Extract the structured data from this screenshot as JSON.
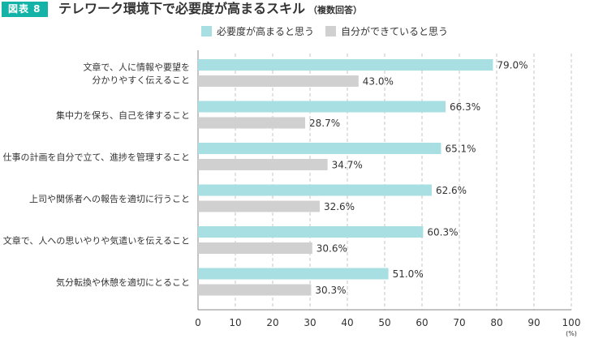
{
  "figure": {
    "badge": "図表 8",
    "title": "テレワーク環境下で必要度が高まるスキル",
    "subtitle": "（複数回答）"
  },
  "colors": {
    "badge": "#14b3a8",
    "series_needed": "#a8dfe2",
    "series_capable": "#d0d0d0"
  },
  "chart_data": {
    "type": "bar",
    "orientation": "horizontal",
    "categories": [
      [
        "文章で、人に情報や要望を",
        "分かりやすく伝えること"
      ],
      [
        "集中力を保ち、自己を律すること"
      ],
      [
        "仕事の計画を自分で立て、進捗を管理すること"
      ],
      [
        "上司や関係者への報告を適切に行うこと"
      ],
      [
        "文章で、人への思いやりや気遣いを伝えること"
      ],
      [
        "気分転換や休憩を適切にとること"
      ]
    ],
    "series": [
      {
        "name": "必要度が高まると思う",
        "values": [
          79.0,
          66.3,
          65.1,
          62.6,
          60.3,
          51.0
        ]
      },
      {
        "name": "自分ができていると思う",
        "values": [
          43.0,
          28.7,
          34.7,
          32.6,
          30.6,
          30.3
        ]
      }
    ],
    "xlim": [
      0,
      100
    ],
    "xticks": [
      0,
      10,
      20,
      30,
      40,
      50,
      60,
      70,
      80,
      90,
      100
    ],
    "xunit": "(%)",
    "value_suffix": "%",
    "grid": true,
    "legend_position": "top"
  }
}
